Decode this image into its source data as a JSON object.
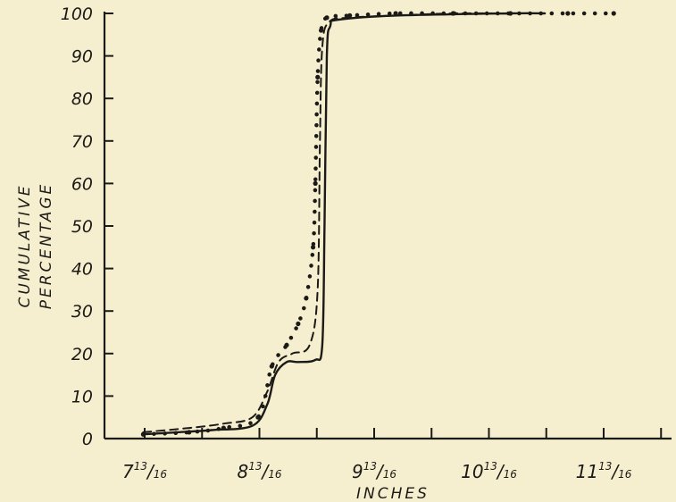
{
  "chart_data": {
    "type": "line",
    "xlabel": "INCHES",
    "ylabel": [
      "CUMULATIVE",
      "PERCENTAGE"
    ],
    "x_ticks": [
      {
        "value": 7.8125,
        "whole": "7",
        "num": "13",
        "den": "16"
      },
      {
        "value": 8.8125,
        "whole": "8",
        "num": "13",
        "den": "16"
      },
      {
        "value": 9.8125,
        "whole": "9",
        "num": "13",
        "den": "16"
      },
      {
        "value": 10.8125,
        "whole": "10",
        "num": "13",
        "den": "16"
      },
      {
        "value": 11.8125,
        "whole": "11",
        "num": "13",
        "den": "16"
      }
    ],
    "y_ticks": [
      "0",
      "10",
      "20",
      "30",
      "40",
      "50",
      "60",
      "70",
      "80",
      "90",
      "100"
    ],
    "xlim": [
      7.5,
      12.0
    ],
    "ylim": [
      0,
      100
    ],
    "series": [
      {
        "style": "solid",
        "x": [
          7.8,
          8.1,
          8.4,
          8.75,
          8.88,
          8.95,
          9.05,
          9.15,
          9.3,
          9.36,
          9.38,
          9.4,
          9.43,
          9.5,
          10.0,
          11.0,
          11.3
        ],
        "y": [
          1,
          1.5,
          2,
          3,
          8,
          15,
          18,
          18,
          18.5,
          22,
          50,
          90,
          97,
          98.5,
          99.5,
          100,
          100
        ]
      },
      {
        "style": "dashed",
        "x": [
          7.8,
          8.2,
          8.5,
          8.75,
          8.88,
          8.98,
          9.1,
          9.25,
          9.32,
          9.34,
          9.36,
          9.42,
          9.6,
          10.0,
          10.5,
          11.0,
          11.3
        ],
        "y": [
          1.5,
          2.5,
          3.5,
          5,
          11,
          18,
          20,
          22,
          35,
          70,
          92,
          98,
          99,
          99.5,
          100,
          100,
          100
        ]
      },
      {
        "style": "dotted",
        "x": [
          7.8,
          8.2,
          8.5,
          8.8,
          8.92,
          9.05,
          9.15,
          9.22,
          9.28,
          9.3,
          9.32,
          9.35,
          9.4,
          9.6,
          10.0,
          10.5,
          11.0,
          11.5,
          11.9
        ],
        "y": [
          1,
          1.5,
          2.5,
          5,
          17,
          22,
          27,
          33,
          45,
          60,
          85,
          96,
          99,
          99.5,
          100,
          100,
          100,
          100,
          100
        ]
      }
    ]
  }
}
